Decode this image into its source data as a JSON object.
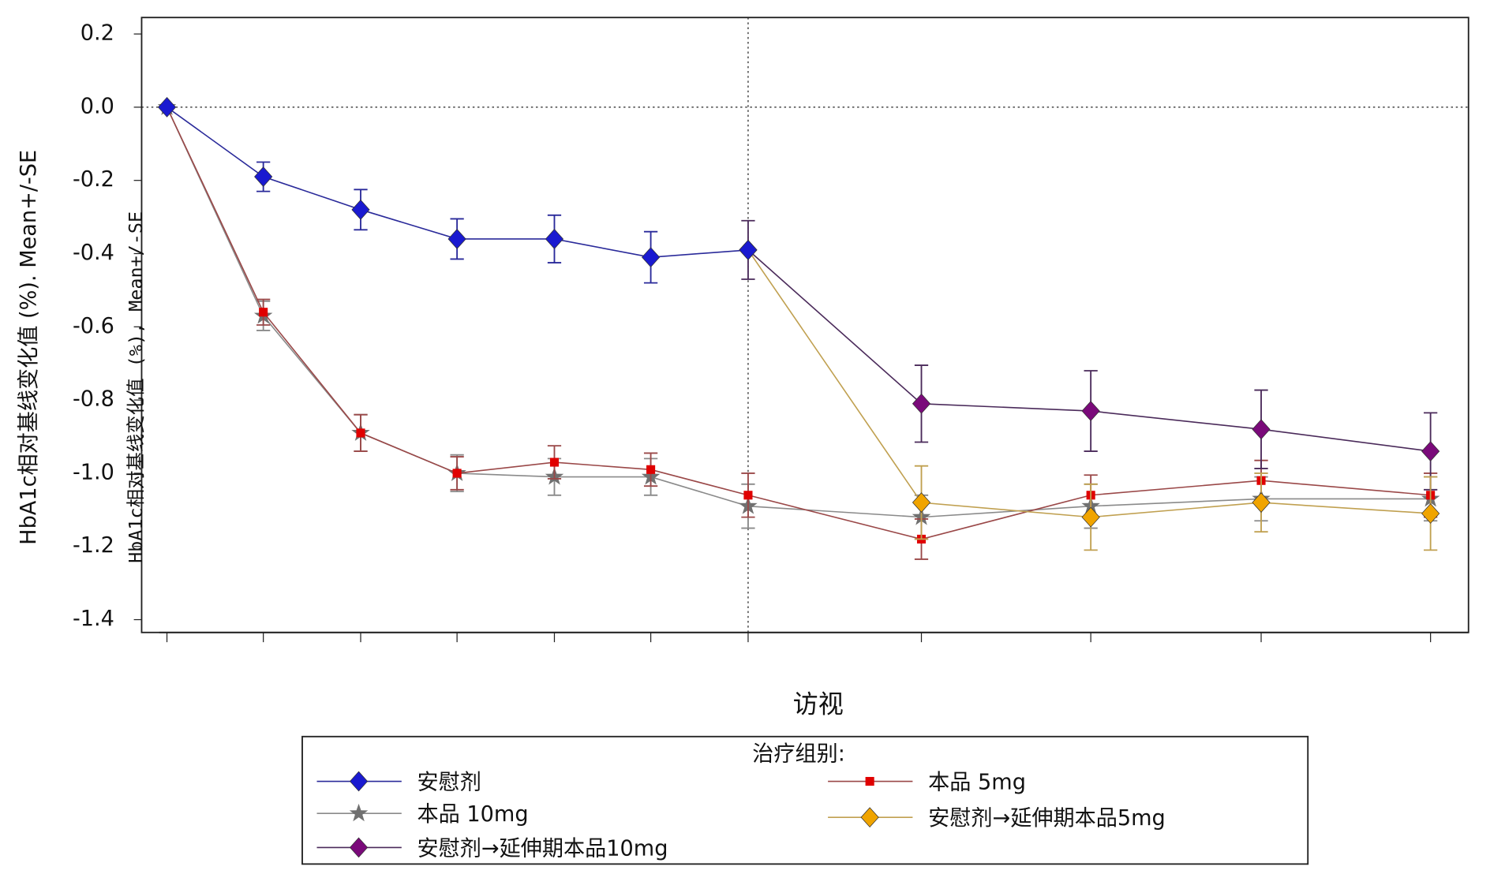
{
  "chart_data": {
    "type": "line",
    "ylabel": "HbA1c相对基线变化值 (%). Mean+/-SE",
    "ylabel_overlay": "HbA1c相对基线变化值 (%), Mean+/-SE",
    "xlabel": "访视",
    "legend_title": "治疗组别:",
    "categories": [
      null,
      null,
      null,
      null,
      null,
      null,
      null,
      null,
      null,
      null,
      null
    ],
    "ylim": [
      -1.435,
      0.245
    ],
    "yticks": [
      0.2,
      {
        "value": 0,
        "label": "0.0"
      },
      -0.2,
      -0.4,
      -0.6,
      -0.8,
      {
        "value": -1,
        "label": "-1.0"
      },
      -1.2,
      -1.4
    ],
    "hline": 0,
    "vline_category": 6,
    "series": [
      {
        "name": "安慰剂",
        "color": "#1a1ad0",
        "line_color": "#2a2a9a",
        "marker": "diamond",
        "values": [
          0,
          -0.19,
          -0.28,
          -0.36,
          -0.36,
          -0.41,
          -0.39,
          null,
          null,
          null,
          null
        ],
        "errors": [
          null,
          0.04,
          0.055,
          0.055,
          0.065,
          0.07,
          null,
          null,
          null,
          null,
          null
        ]
      },
      {
        "name": "本品 5mg",
        "color": "#e00000",
        "line_color": "#9a4848",
        "marker": "square",
        "values": [
          0,
          -0.56,
          -0.89,
          -1.0,
          -0.97,
          -0.99,
          -1.06,
          -1.18,
          -1.06,
          -1.02,
          -1.06
        ],
        "errors": [
          null,
          0.035,
          0.05,
          0.045,
          0.045,
          0.045,
          0.06,
          0.055,
          0.055,
          0.055,
          0.06
        ]
      },
      {
        "name": "本品 10mg",
        "color": "#707070",
        "line_color": "#8a8a8a",
        "marker": "star",
        "values": [
          0,
          -0.57,
          -0.89,
          -1.0,
          -1.01,
          -1.01,
          -1.09,
          -1.12,
          -1.09,
          -1.07,
          -1.07
        ],
        "errors": [
          null,
          0.04,
          0.05,
          0.05,
          0.05,
          0.05,
          0.06,
          0.06,
          0.06,
          0.06,
          0.06
        ]
      },
      {
        "name": "安慰剂→延伸期本品5mg",
        "color": "#f0a400",
        "line_color": "#c0a050",
        "marker": "diamond",
        "values": [
          null,
          null,
          null,
          null,
          null,
          null,
          -0.39,
          -1.08,
          -1.12,
          -1.08,
          -1.11
        ],
        "errors": [
          null,
          null,
          null,
          null,
          null,
          null,
          null,
          0.1,
          0.09,
          0.08,
          0.1
        ]
      },
      {
        "name": "安慰剂→延伸期本品10mg",
        "color": "#7a0a7a",
        "line_color": "#4a2a5a",
        "marker": "diamond",
        "values": [
          null,
          null,
          null,
          null,
          null,
          null,
          -0.39,
          -0.81,
          -0.83,
          -0.88,
          -0.94
        ],
        "errors": [
          null,
          null,
          null,
          null,
          null,
          null,
          0.08,
          0.105,
          0.11,
          0.107,
          0.105
        ]
      }
    ]
  }
}
